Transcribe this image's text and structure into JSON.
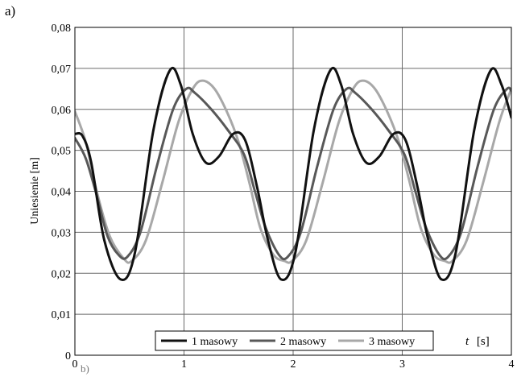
{
  "panel_label": "a)",
  "next_panel_label": "b)",
  "colors": {
    "series_1": "#111111",
    "series_2": "#585858",
    "series_3": "#a8a8a8",
    "grid": "#6a6a6a",
    "frame": "#000000"
  },
  "chart_data": {
    "type": "line",
    "title": "",
    "xlabel_italic": "t",
    "xlabel_unit": "[s]",
    "ylabel": "Uniesienie [m]",
    "xlim": [
      0,
      4
    ],
    "ylim": [
      0,
      0.08
    ],
    "xticks": [
      0,
      1,
      2,
      3,
      4
    ],
    "xtick_labels": [
      "0",
      "1",
      "2",
      "3",
      "4"
    ],
    "yticks": [
      0,
      0.01,
      0.02,
      0.03,
      0.04,
      0.05,
      0.06,
      0.07,
      0.08
    ],
    "ytick_labels": [
      "0",
      "0,01",
      "0,02",
      "0,03",
      "0,04",
      "0,05",
      "0,06",
      "0,07",
      "0,08"
    ],
    "grid": true,
    "legend_position": "bottom-center",
    "series": [
      {
        "name": "1 masowy",
        "x": [
          0,
          0.07,
          0.15,
          0.27,
          0.42,
          0.55,
          0.72,
          0.87,
          0.97,
          1.08,
          1.2,
          1.32,
          1.45,
          1.56,
          1.67,
          1.77,
          1.89,
          2.02,
          2.19,
          2.34,
          2.44,
          2.55,
          2.67,
          2.79,
          2.92,
          3.03,
          3.14,
          3.24,
          3.36,
          3.49,
          3.66,
          3.81,
          3.91,
          4.0
        ],
        "values": [
          0.054,
          0.0535,
          0.047,
          0.028,
          0.0185,
          0.025,
          0.055,
          0.0695,
          0.066,
          0.054,
          0.047,
          0.0485,
          0.054,
          0.0525,
          0.041,
          0.028,
          0.0185,
          0.025,
          0.055,
          0.0695,
          0.066,
          0.054,
          0.047,
          0.0485,
          0.054,
          0.0525,
          0.041,
          0.028,
          0.0185,
          0.025,
          0.055,
          0.0695,
          0.066,
          0.058
        ]
      },
      {
        "name": "2 masowy",
        "x": [
          0,
          0.1,
          0.2,
          0.3,
          0.4,
          0.48,
          0.6,
          0.75,
          0.9,
          1.02,
          1.1,
          1.25,
          1.4,
          1.55,
          1.65,
          1.75,
          1.87,
          1.95,
          2.07,
          2.22,
          2.37,
          2.49,
          2.57,
          2.72,
          2.87,
          3.02,
          3.12,
          3.22,
          3.34,
          3.42,
          3.54,
          3.69,
          3.84,
          3.96,
          4.0
        ],
        "values": [
          0.053,
          0.048,
          0.039,
          0.029,
          0.0245,
          0.024,
          0.03,
          0.046,
          0.06,
          0.065,
          0.064,
          0.06,
          0.055,
          0.049,
          0.04,
          0.031,
          0.0245,
          0.024,
          0.03,
          0.046,
          0.06,
          0.065,
          0.064,
          0.06,
          0.055,
          0.049,
          0.04,
          0.031,
          0.0245,
          0.024,
          0.03,
          0.046,
          0.06,
          0.065,
          0.0645
        ]
      },
      {
        "name": "3 masowy",
        "x": [
          0,
          0.1,
          0.2,
          0.32,
          0.45,
          0.52,
          0.65,
          0.8,
          0.95,
          1.08,
          1.17,
          1.28,
          1.4,
          1.5,
          1.6,
          1.7,
          1.82,
          1.92,
          1.99,
          2.12,
          2.27,
          2.42,
          2.55,
          2.64,
          2.75,
          2.87,
          2.97,
          3.07,
          3.17,
          3.29,
          3.39,
          3.46,
          3.59,
          3.74,
          3.89,
          4.0
        ],
        "values": [
          0.0595,
          0.052,
          0.04,
          0.029,
          0.0235,
          0.023,
          0.028,
          0.042,
          0.057,
          0.065,
          0.067,
          0.065,
          0.059,
          0.052,
          0.042,
          0.031,
          0.0245,
          0.023,
          0.023,
          0.028,
          0.042,
          0.057,
          0.065,
          0.067,
          0.065,
          0.059,
          0.052,
          0.042,
          0.031,
          0.0245,
          0.023,
          0.023,
          0.028,
          0.042,
          0.057,
          0.065
        ]
      }
    ]
  }
}
